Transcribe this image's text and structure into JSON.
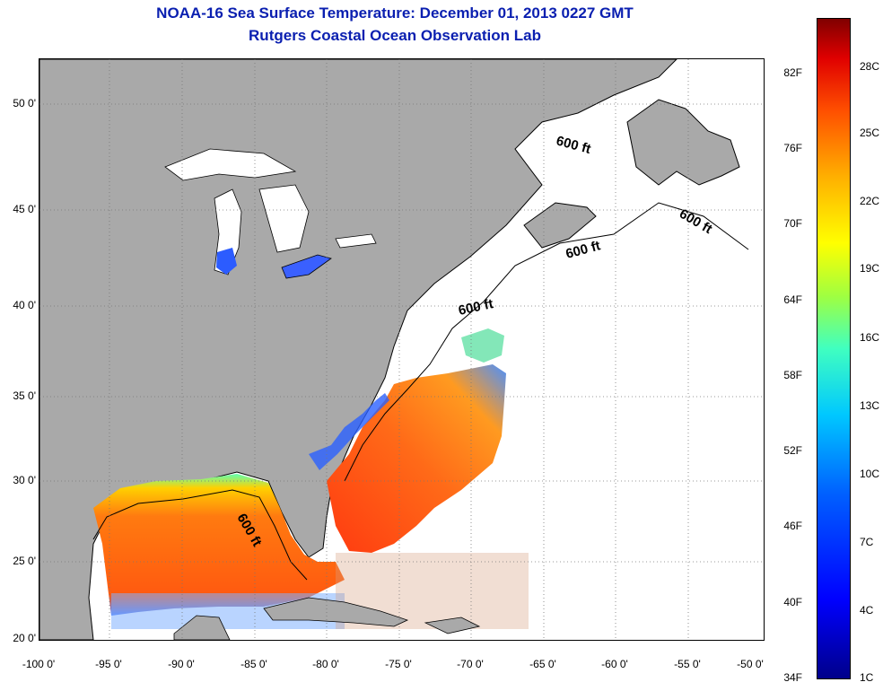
{
  "title": {
    "line1": "NOAA-16 Sea Surface Temperature:  December 01, 2013 0227 GMT",
    "line2": "Rutgers Coastal Ocean Observation Lab"
  },
  "axes": {
    "y_labels": [
      "50 0'",
      "45 0'",
      "40 0'",
      "35 0'",
      "30 0'",
      "25 0'",
      "20 0'"
    ],
    "x_labels": [
      "-100 0'",
      "-95 0'",
      "-90 0'",
      "-85 0'",
      "-80 0'",
      "-75 0'",
      "-70 0'",
      "-65 0'",
      "-60 0'",
      "-55 0'",
      "-50 0'"
    ]
  },
  "contour_labels": [
    "600 ft",
    "600 ft",
    "600 ft",
    "600 ft",
    "600 ft"
  ],
  "colorbar": {
    "fahrenheit": [
      "82F",
      "76F",
      "70F",
      "64F",
      "58F",
      "52F",
      "46F",
      "40F",
      "34F"
    ],
    "celsius": [
      "28C",
      "25C",
      "22C",
      "19C",
      "16C",
      "13C",
      "10C",
      "7C",
      "4C",
      "1C"
    ]
  },
  "colors": {
    "title": "#0a1fb0",
    "land": "#a9a9a9",
    "warm_water": "#ff4a10",
    "cool_water": "#2050ff"
  }
}
